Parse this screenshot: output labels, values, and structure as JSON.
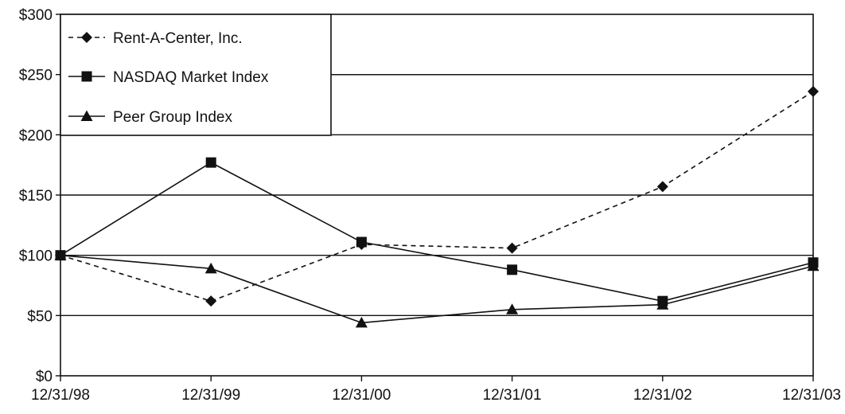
{
  "chart_data": {
    "type": "line",
    "title": "",
    "xlabel": "",
    "ylabel": "",
    "categories": [
      "12/31/98",
      "12/31/99",
      "12/31/00",
      "12/31/01",
      "12/31/02",
      "12/31/03"
    ],
    "y_ticks": [
      "$0",
      "$50",
      "$100",
      "$150",
      "$200",
      "$250",
      "$300"
    ],
    "ylim": [
      0,
      300
    ],
    "grid": "horizontal",
    "legend_position": "top-left",
    "series": [
      {
        "name": "Rent-A-Center, Inc.",
        "marker": "diamond",
        "line": "dashed",
        "values": [
          100,
          62,
          109,
          106,
          157,
          236
        ]
      },
      {
        "name": "NASDAQ Market Index",
        "marker": "square",
        "line": "solid",
        "values": [
          100,
          177,
          111,
          88,
          62,
          94
        ]
      },
      {
        "name": "Peer Group Index",
        "marker": "triangle",
        "line": "solid",
        "values": [
          100,
          89,
          44,
          55,
          59,
          91
        ]
      }
    ],
    "colors": {
      "line": "#111111",
      "grid": "#111111",
      "background": "#ffffff"
    }
  }
}
